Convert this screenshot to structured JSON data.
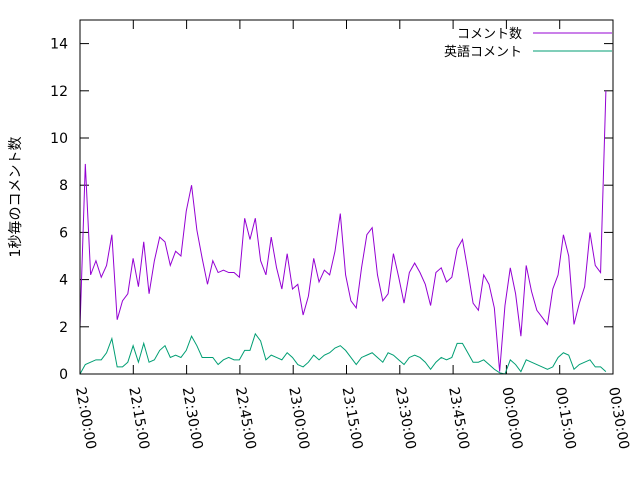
{
  "chart_data": {
    "type": "line",
    "ylabel": "1秒毎のコメント数",
    "xlabel": "",
    "title": "",
    "ylim": [
      0,
      15
    ],
    "y_ticks": [
      0,
      2,
      4,
      6,
      8,
      10,
      12,
      14
    ],
    "x_tick_labels": [
      "22:00:00",
      "22:15:00",
      "22:30:00",
      "22:45:00",
      "23:00:00",
      "23:15:00",
      "23:30:00",
      "23:45:00",
      "00:00:00",
      "00:15:00",
      "00:30:00"
    ],
    "x_range_minutes": [
      0,
      150
    ],
    "legend_position": "top-right",
    "colors": {
      "series1": "#9400d3",
      "series2": "#009e73"
    },
    "series": [
      {
        "name": "コメント数",
        "points": [
          [
            0,
            2.0
          ],
          [
            1,
            8.9
          ],
          [
            2,
            4.2
          ],
          [
            3,
            4.8
          ],
          [
            4,
            4.1
          ],
          [
            5,
            4.6
          ],
          [
            6,
            5.9
          ],
          [
            7,
            2.3
          ],
          [
            8,
            3.1
          ],
          [
            9,
            3.4
          ],
          [
            10,
            4.9
          ],
          [
            11,
            3.7
          ],
          [
            12,
            5.6
          ],
          [
            13,
            3.4
          ],
          [
            14,
            4.8
          ],
          [
            15,
            5.8
          ],
          [
            16,
            5.6
          ],
          [
            17,
            4.6
          ],
          [
            18,
            5.2
          ],
          [
            19,
            5.0
          ],
          [
            20,
            6.9
          ],
          [
            21,
            8.0
          ],
          [
            22,
            6.1
          ],
          [
            23,
            4.9
          ],
          [
            24,
            3.8
          ],
          [
            25,
            4.8
          ],
          [
            26,
            4.3
          ],
          [
            27,
            4.4
          ],
          [
            28,
            4.3
          ],
          [
            29,
            4.3
          ],
          [
            30,
            4.1
          ],
          [
            31,
            6.6
          ],
          [
            32,
            5.7
          ],
          [
            33,
            6.6
          ],
          [
            34,
            4.8
          ],
          [
            35,
            4.2
          ],
          [
            36,
            5.8
          ],
          [
            37,
            4.5
          ],
          [
            38,
            3.6
          ],
          [
            39,
            5.1
          ],
          [
            40,
            3.6
          ],
          [
            41,
            3.8
          ],
          [
            42,
            2.5
          ],
          [
            43,
            3.3
          ],
          [
            44,
            4.9
          ],
          [
            45,
            3.9
          ],
          [
            46,
            4.4
          ],
          [
            47,
            4.2
          ],
          [
            48,
            5.2
          ],
          [
            49,
            6.8
          ],
          [
            50,
            4.2
          ],
          [
            51,
            3.1
          ],
          [
            52,
            2.8
          ],
          [
            53,
            4.5
          ],
          [
            54,
            5.9
          ],
          [
            55,
            6.2
          ],
          [
            56,
            4.2
          ],
          [
            57,
            3.1
          ],
          [
            58,
            3.4
          ],
          [
            59,
            5.1
          ],
          [
            60,
            4.1
          ],
          [
            61,
            3.0
          ],
          [
            62,
            4.3
          ],
          [
            63,
            4.7
          ],
          [
            64,
            4.3
          ],
          [
            65,
            3.8
          ],
          [
            66,
            2.9
          ],
          [
            67,
            4.3
          ],
          [
            68,
            4.5
          ],
          [
            69,
            3.9
          ],
          [
            70,
            4.1
          ],
          [
            71,
            5.3
          ],
          [
            72,
            5.7
          ],
          [
            73,
            4.4
          ],
          [
            74,
            3.0
          ],
          [
            75,
            2.7
          ],
          [
            76,
            4.2
          ],
          [
            77,
            3.8
          ],
          [
            78,
            2.8
          ],
          [
            79,
            0.1
          ],
          [
            80,
            2.9
          ],
          [
            81,
            4.5
          ],
          [
            82,
            3.4
          ],
          [
            83,
            1.6
          ],
          [
            84,
            4.6
          ],
          [
            85,
            3.5
          ],
          [
            86,
            2.7
          ],
          [
            87,
            2.4
          ],
          [
            88,
            2.1
          ],
          [
            89,
            3.6
          ],
          [
            90,
            4.2
          ],
          [
            91,
            5.9
          ],
          [
            92,
            5.0
          ],
          [
            93,
            2.1
          ],
          [
            94,
            3.0
          ],
          [
            95,
            3.7
          ],
          [
            96,
            6.0
          ],
          [
            97,
            4.6
          ],
          [
            98,
            4.3
          ],
          [
            99,
            12.0
          ]
        ]
      },
      {
        "name": "英語コメント",
        "points": [
          [
            0,
            0.0
          ],
          [
            1,
            0.4
          ],
          [
            2,
            0.5
          ],
          [
            3,
            0.6
          ],
          [
            4,
            0.6
          ],
          [
            5,
            0.9
          ],
          [
            6,
            1.5
          ],
          [
            7,
            0.3
          ],
          [
            8,
            0.3
          ],
          [
            9,
            0.5
          ],
          [
            10,
            1.2
          ],
          [
            11,
            0.5
          ],
          [
            12,
            1.3
          ],
          [
            13,
            0.5
          ],
          [
            14,
            0.6
          ],
          [
            15,
            1.0
          ],
          [
            16,
            1.2
          ],
          [
            17,
            0.7
          ],
          [
            18,
            0.8
          ],
          [
            19,
            0.7
          ],
          [
            20,
            1.0
          ],
          [
            21,
            1.6
          ],
          [
            22,
            1.2
          ],
          [
            23,
            0.7
          ],
          [
            24,
            0.7
          ],
          [
            25,
            0.7
          ],
          [
            26,
            0.4
          ],
          [
            27,
            0.6
          ],
          [
            28,
            0.7
          ],
          [
            29,
            0.6
          ],
          [
            30,
            0.6
          ],
          [
            31,
            1.0
          ],
          [
            32,
            1.0
          ],
          [
            33,
            1.7
          ],
          [
            34,
            1.4
          ],
          [
            35,
            0.6
          ],
          [
            36,
            0.8
          ],
          [
            37,
            0.7
          ],
          [
            38,
            0.6
          ],
          [
            39,
            0.9
          ],
          [
            40,
            0.7
          ],
          [
            41,
            0.4
          ],
          [
            42,
            0.3
          ],
          [
            43,
            0.5
          ],
          [
            44,
            0.8
          ],
          [
            45,
            0.6
          ],
          [
            46,
            0.8
          ],
          [
            47,
            0.9
          ],
          [
            48,
            1.1
          ],
          [
            49,
            1.2
          ],
          [
            50,
            1.0
          ],
          [
            51,
            0.7
          ],
          [
            52,
            0.4
          ],
          [
            53,
            0.7
          ],
          [
            54,
            0.8
          ],
          [
            55,
            0.9
          ],
          [
            56,
            0.7
          ],
          [
            57,
            0.5
          ],
          [
            58,
            0.9
          ],
          [
            59,
            0.8
          ],
          [
            60,
            0.6
          ],
          [
            61,
            0.4
          ],
          [
            62,
            0.7
          ],
          [
            63,
            0.8
          ],
          [
            64,
            0.7
          ],
          [
            65,
            0.5
          ],
          [
            66,
            0.2
          ],
          [
            67,
            0.5
          ],
          [
            68,
            0.7
          ],
          [
            69,
            0.6
          ],
          [
            70,
            0.7
          ],
          [
            71,
            1.3
          ],
          [
            72,
            1.3
          ],
          [
            73,
            0.9
          ],
          [
            74,
            0.5
          ],
          [
            75,
            0.5
          ],
          [
            76,
            0.6
          ],
          [
            77,
            0.4
          ],
          [
            78,
            0.2
          ],
          [
            79,
            0.05
          ],
          [
            80,
            0.0
          ],
          [
            81,
            0.6
          ],
          [
            82,
            0.4
          ],
          [
            83,
            0.1
          ],
          [
            84,
            0.6
          ],
          [
            85,
            0.5
          ],
          [
            86,
            0.4
          ],
          [
            87,
            0.3
          ],
          [
            88,
            0.2
          ],
          [
            89,
            0.3
          ],
          [
            90,
            0.7
          ],
          [
            91,
            0.9
          ],
          [
            92,
            0.8
          ],
          [
            93,
            0.2
          ],
          [
            94,
            0.4
          ],
          [
            95,
            0.5
          ],
          [
            96,
            0.6
          ],
          [
            97,
            0.3
          ],
          [
            98,
            0.3
          ],
          [
            99,
            0.1
          ]
        ]
      }
    ]
  }
}
